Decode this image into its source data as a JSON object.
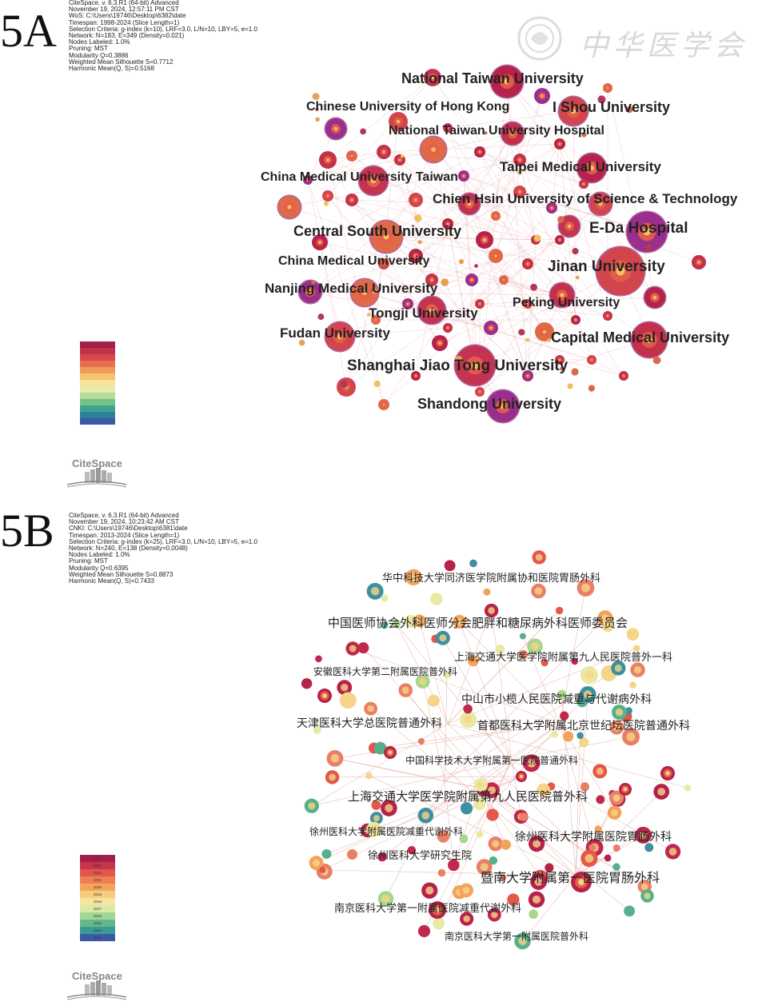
{
  "panelA": {
    "letter": "5A",
    "meta": [
      "CiteSpace, v. 6.3.R1 (64-bit) Advanced",
      "November 19, 2024, 12:57:11 PM CST",
      "WoS: C:\\Users\\19746\\Desktop\\6382\\date",
      "Timespan: 1998-2024 (Slice Length=1)",
      "Selection Criteria: g-index (k=10), LRF=3.0, L/N=10, LBY=5, e=1.0",
      "Network: N=183, E=349 (Density=0.021)",
      "Nodes Labeled: 1.0%",
      "Pruning: MST",
      "Modularity Q=0.3886",
      "Weighted Mean Silhouette S=0.7712",
      "Harmonic Mean(Q, S)=0.5168"
    ],
    "watermark": "中华医学会",
    "logo": "CiteSpace",
    "labels": [
      "National Taiwan University",
      "Chinese University of Hong Kong",
      "I Shou University",
      "National Taiwan University Hospital",
      "Taipei Medical University",
      "China Medical University Taiwan",
      "Chien Hsin University of Science & Technology",
      "E-Da Hospital",
      "Central South University",
      "China Medical University",
      "Jinan University",
      "Nanjing Medical University",
      "Peking University",
      "Tongji University",
      "Fudan University",
      "Capital Medical University",
      "Shanghai Jiao Tong University",
      "Shandong University"
    ]
  },
  "panelB": {
    "letter": "5B",
    "meta": [
      "CiteSpace, v. 6.3.R1 (64-bit) Advanced",
      "November 19, 2024, 10:23:42 AM CST",
      "CNKI: C:\\Users\\19746\\Desktop\\6381\\date",
      "Timespan: 2013-2024 (Slice Length=1)",
      "Selection Criteria: g-index (k=25), LRF=3.0, L/N=10, LBY=5, e=1.0",
      "Network: N=240, E=138 (Density=0.0048)",
      "Nodes Labeled: 1.0%",
      "Pruning: MST",
      "Modularity Q=0.6395",
      "Weighted Mean Silhouette S=0.8873",
      "Harmonic Mean(Q, S)=0.7433"
    ],
    "logo": "CiteSpace",
    "legend_years": [
      "2024",
      "2023",
      "2022",
      "2021",
      "2020",
      "2019",
      "2018",
      "2017",
      "2016",
      "2015",
      "2014",
      "2013"
    ],
    "labels": [
      "华中科技大学同济医学院附属协和医院胃肠外科",
      "中国医师协会外科医师分会肥胖和糖尿病外科医师委员会",
      "上海交通大学医学院附属第九人民医院普外一科",
      "安徽医科大学第二附属医院普外科",
      "中山市小榄人民医院减重与代谢病外科",
      "天津医科大学总医院普通外科",
      "首都医科大学附属北京世纪坛医院普通外科",
      "中国科学技术大学附属第一医院普通外科",
      "上海交通大学医学院附属第九人民医院普外科",
      "徐州医科大学附属医院减重代谢外科",
      "徐州医科大学附属医院胃肠外科",
      "徐州医科大学研究生院",
      "暨南大学附属第一医院胃肠外科",
      "南京医科大学第一附属医院减重代谢外科",
      "南京医科大学第一附属医院普外科"
    ]
  },
  "colors": {
    "node_primary": "#b5234a",
    "node_ring": "#9a2e8c",
    "edge_a": "#e8a0a8",
    "edge_b": "#e0a098"
  }
}
